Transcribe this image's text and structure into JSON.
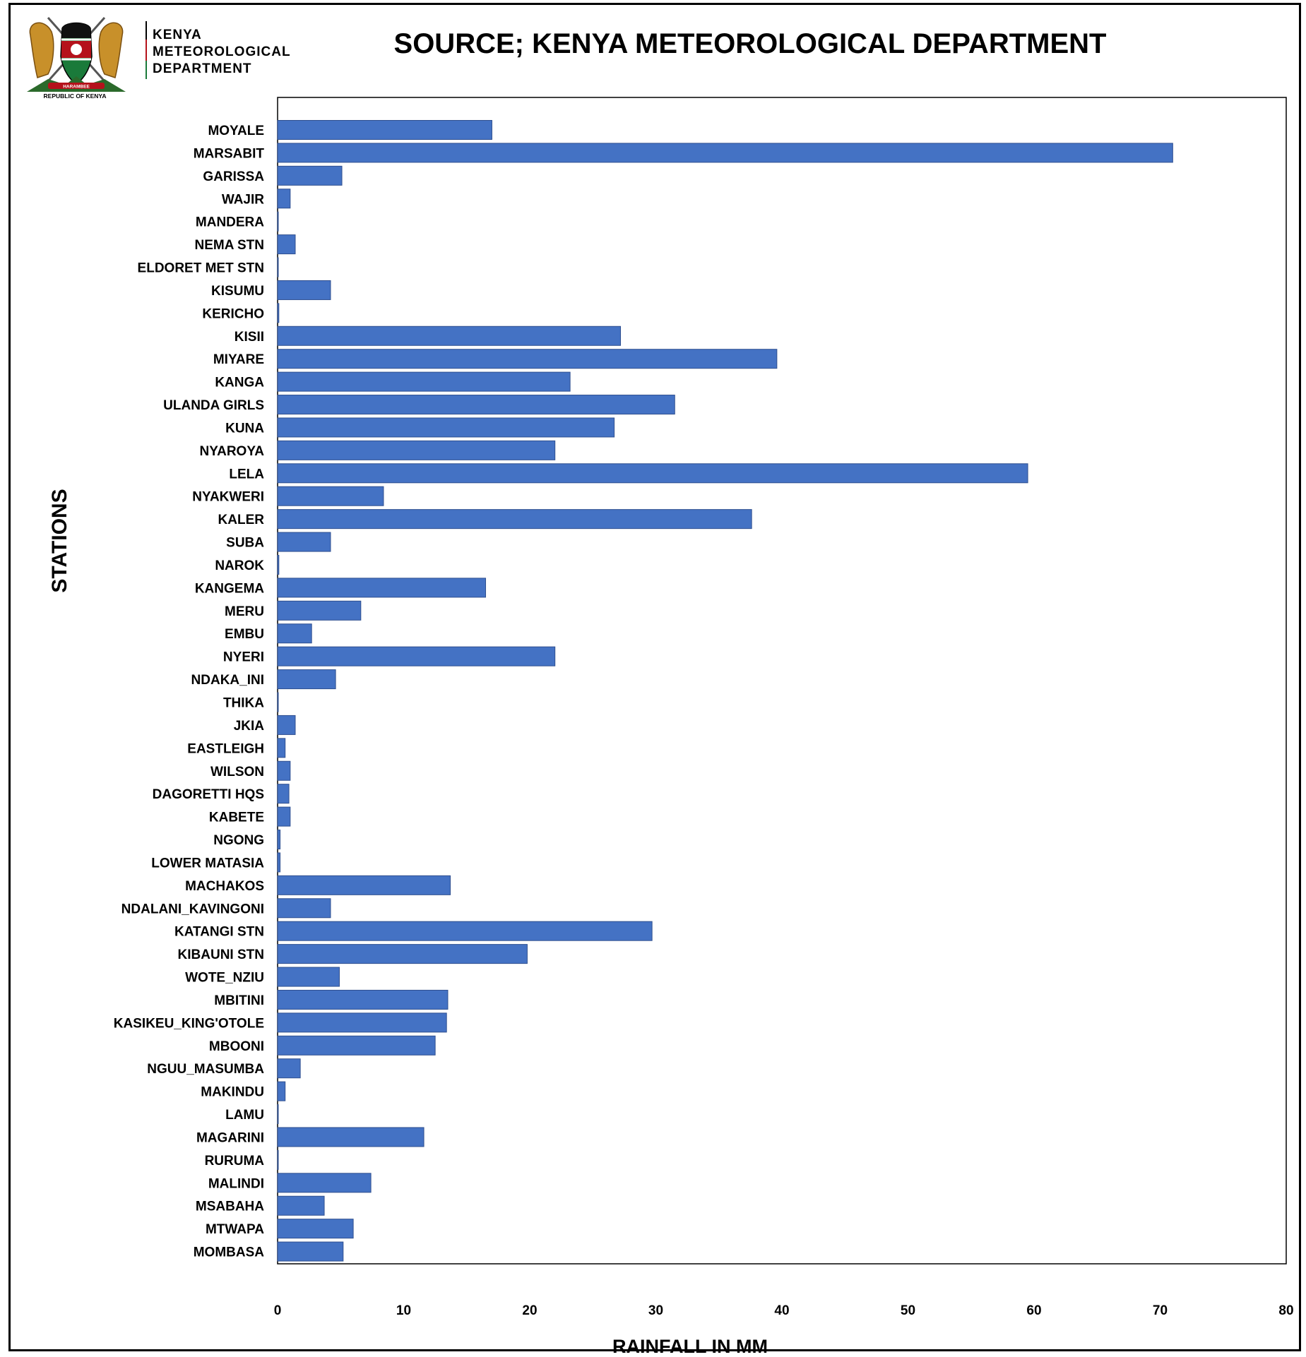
{
  "header": {
    "org_line1": "KENYA",
    "org_line2": "METEOROLOGICAL",
    "org_line3": "DEPARTMENT",
    "seal_caption": "REPUBLIC OF KENYA",
    "seal_motto": "HARAMBEE"
  },
  "colors": {
    "bar": "#4472C4",
    "bar_edge": "#2F4F8F",
    "seal_red": "#b5121b",
    "seal_green": "#1a7a3a",
    "seal_gold": "#c8902a"
  },
  "chart_data": {
    "type": "bar",
    "orientation": "horizontal",
    "title": "SOURCE; KENYA METEOROLOGICAL DEPARTMENT",
    "xlabel": "RAINFALL IN MM",
    "ylabel": "STATIONS",
    "xlim": [
      0,
      80
    ],
    "xticks": [
      0,
      10,
      20,
      30,
      40,
      50,
      60,
      70,
      80
    ],
    "grid": false,
    "categories": [
      "MOYALE",
      "MARSABIT",
      "GARISSA",
      "WAJIR",
      "MANDERA",
      "NEMA STN",
      "ELDORET MET STN",
      "KISUMU",
      "KERICHO",
      "KISII",
      "MIYARE",
      "KANGA",
      "ULANDA GIRLS",
      "KUNA",
      "NYAROYA",
      "LELA",
      "NYAKWERI",
      "KALER",
      "SUBA",
      "NAROK",
      "KANGEMA",
      "MERU",
      "EMBU",
      "NYERI",
      "NDAKA_INI",
      "THIKA",
      "JKIA",
      "EASTLEIGH",
      "WILSON",
      "DAGORETTI HQS",
      "KABETE",
      "NGONG",
      "LOWER MATASIA",
      "MACHAKOS",
      "NDALANI_KAVINGONI",
      "KATANGI STN",
      "KIBAUNI STN",
      "WOTE_NZIU",
      "MBITINI",
      "KASIKEU_KING'OTOLE",
      "MBOONI",
      "NGUU_MASUMBA",
      "MAKINDU",
      "LAMU",
      "MAGARINI",
      "RURUMA",
      "MALINDI",
      "MSABAHA",
      "MTWAPA",
      "MOMBASA"
    ],
    "values": [
      17.0,
      71.0,
      5.1,
      1.0,
      0.0,
      1.4,
      0.0,
      4.2,
      0.1,
      27.2,
      39.6,
      23.2,
      31.5,
      26.7,
      22.0,
      59.5,
      8.4,
      37.6,
      4.2,
      0.1,
      16.5,
      6.6,
      2.7,
      22.0,
      4.6,
      0.0,
      1.4,
      0.6,
      1.0,
      0.9,
      1.0,
      0.2,
      0.2,
      13.7,
      4.2,
      29.7,
      19.8,
      4.9,
      13.5,
      13.4,
      12.5,
      1.8,
      0.6,
      0.0,
      11.6,
      0.0,
      7.4,
      3.7,
      6.0,
      5.2
    ]
  }
}
